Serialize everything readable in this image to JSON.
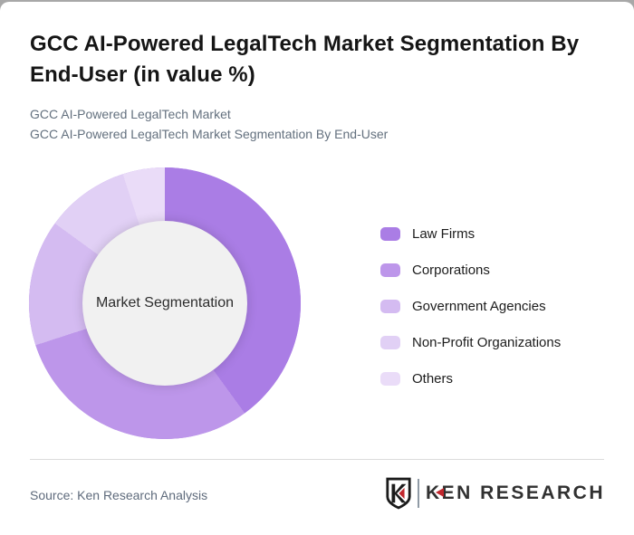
{
  "page": {
    "title": "GCC AI-Powered LegalTech Market Segmentation By End-User (in value %)",
    "subtitle_line1": "GCC AI-Powered LegalTech Market",
    "subtitle_line2": "GCC AI-Powered LegalTech Market Segmentation By End-User"
  },
  "chart_data": {
    "type": "pie",
    "variant": "donut",
    "title": "GCC AI-Powered LegalTech Market Segmentation By End-User (in value %)",
    "center_label": "Market Segmentation",
    "categories": [
      "Law Firms",
      "Corporations",
      "Government Agencies",
      "Non-Profit Organizations",
      "Others"
    ],
    "values": [
      40,
      30,
      15,
      10,
      5
    ],
    "unit": "value %",
    "colors": [
      "#aa7de5",
      "#bd96ea",
      "#d4bbf1",
      "#e1d0f5",
      "#eadcf8"
    ],
    "legend_position": "right",
    "start_angle_deg": 0,
    "clockwise": true,
    "inner_radius_ratio": 0.61
  },
  "footer": {
    "source": "Source: Ken Research Analysis",
    "logo_text": "KEN RESEARCH"
  },
  "theme": {
    "accent": "#aa7de5",
    "logo_red": "#c1272d",
    "hole_fill": "#f1f1f1",
    "text_dark": "#151515",
    "text_gray": "#63707e",
    "source_gray": "#5f6b7c"
  }
}
